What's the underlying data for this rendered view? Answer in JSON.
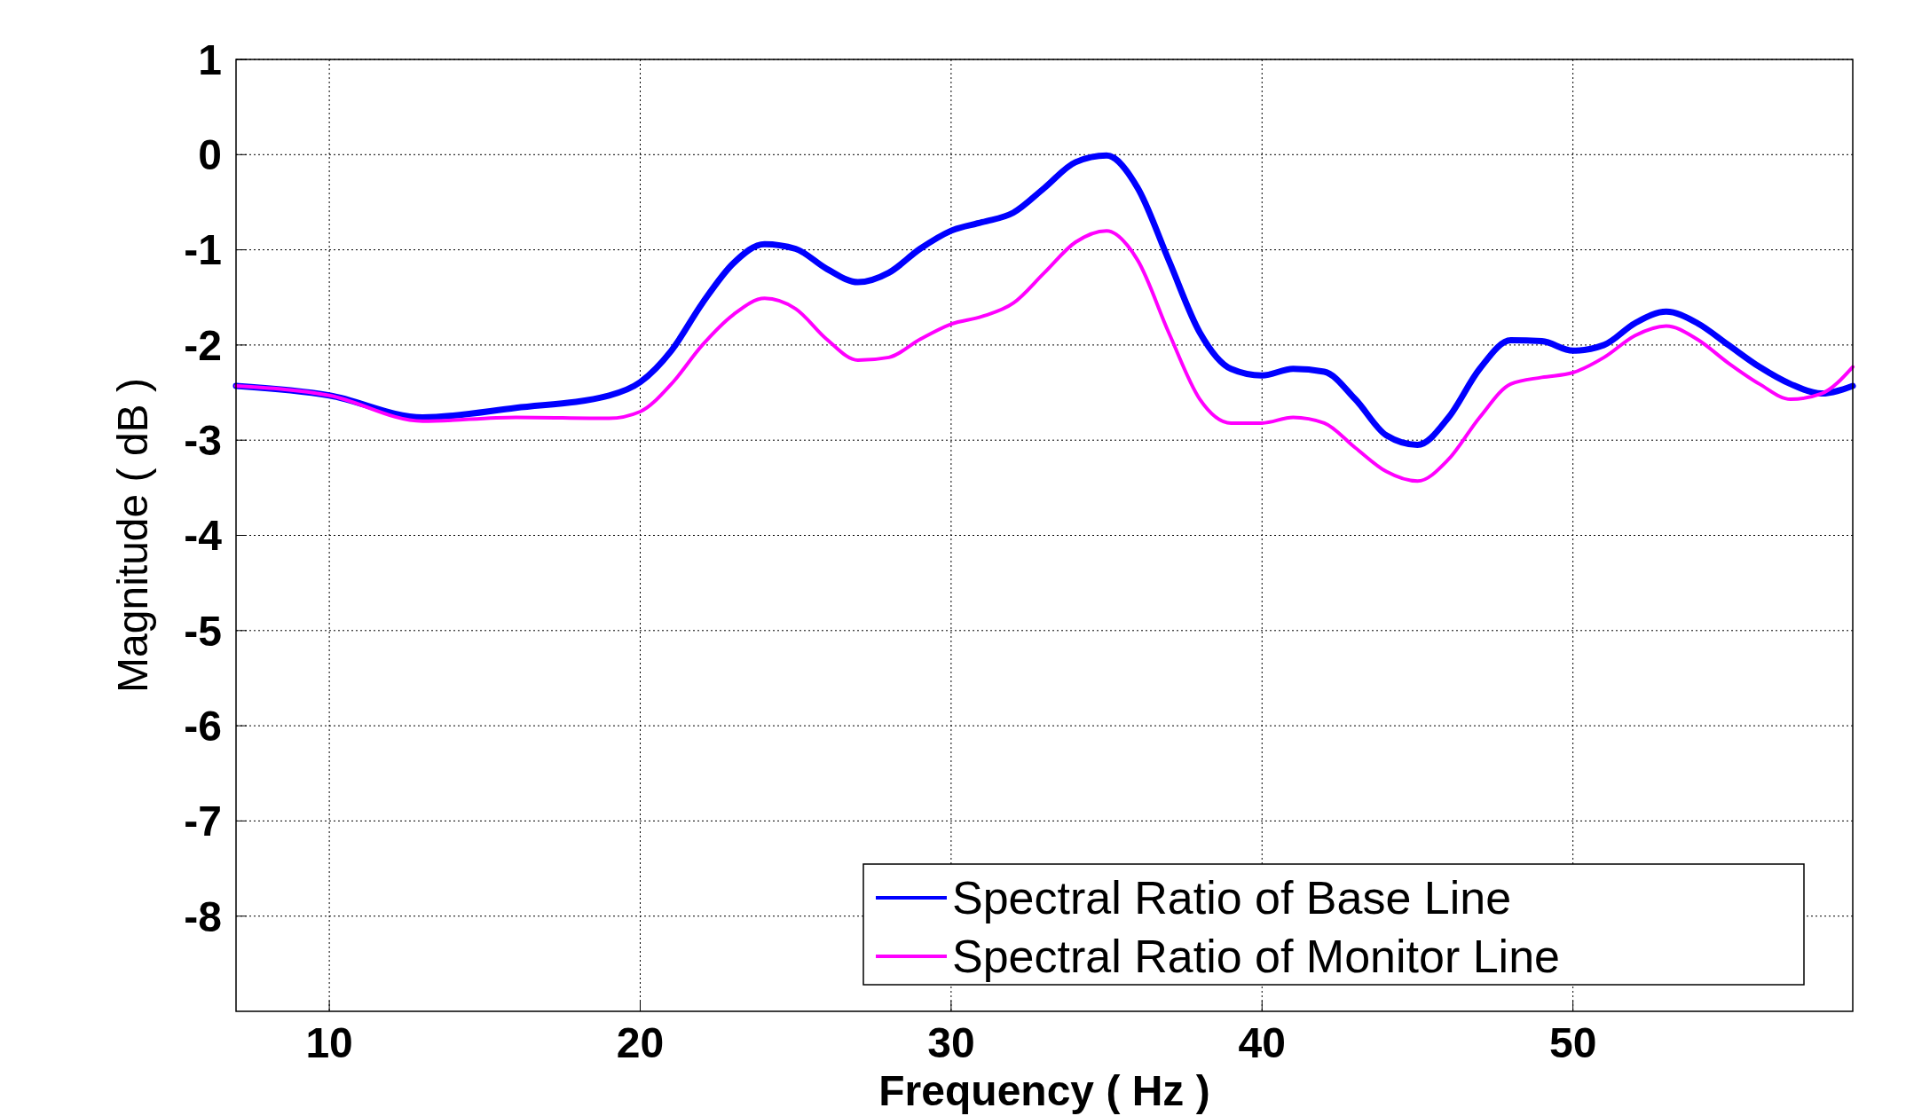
{
  "chart_data": {
    "type": "line",
    "xlabel": "Frequency ( Hz )",
    "ylabel": "Magnitude ( dB )",
    "x": [
      7,
      10,
      13,
      16,
      19,
      20,
      21,
      22,
      23,
      24,
      25,
      26,
      27,
      28,
      29,
      30,
      31,
      32,
      33,
      34,
      35,
      36,
      37,
      38,
      39,
      40,
      41,
      42,
      43,
      44,
      45,
      46,
      47,
      48,
      49,
      50,
      51,
      52,
      53,
      54,
      55,
      56,
      57,
      58,
      59
    ],
    "series": [
      {
        "name": "Spectral Ratio of Base Line",
        "color": "#0000ff",
        "values": [
          -2.43,
          -2.53,
          -2.76,
          -2.66,
          -2.53,
          -2.39,
          -2.06,
          -1.56,
          -1.14,
          -0.94,
          -0.99,
          -1.2,
          -1.34,
          -1.24,
          -0.99,
          -0.8,
          -0.71,
          -0.61,
          -0.35,
          -0.08,
          -0.01,
          -0.35,
          -1.11,
          -1.87,
          -2.25,
          -2.32,
          -2.25,
          -2.28,
          -2.57,
          -2.95,
          -3.05,
          -2.76,
          -2.25,
          -1.95,
          -1.96,
          -2.06,
          -2.0,
          -1.77,
          -1.65,
          -1.77,
          -2.0,
          -2.23,
          -2.41,
          -2.51,
          -2.43
        ]
      },
      {
        "name": "Spectral Ratio of Monitor Line",
        "color": "#ff00ff",
        "values": [
          -2.43,
          -2.53,
          -2.8,
          -2.76,
          -2.77,
          -2.7,
          -2.41,
          -2.0,
          -1.68,
          -1.51,
          -1.62,
          -1.94,
          -2.16,
          -2.13,
          -1.94,
          -1.78,
          -1.7,
          -1.56,
          -1.24,
          -0.92,
          -0.8,
          -1.11,
          -1.87,
          -2.57,
          -2.82,
          -2.82,
          -2.76,
          -2.82,
          -3.08,
          -3.33,
          -3.43,
          -3.2,
          -2.76,
          -2.41,
          -2.34,
          -2.29,
          -2.13,
          -1.9,
          -1.8,
          -1.94,
          -2.19,
          -2.41,
          -2.57,
          -2.51,
          -2.23
        ]
      }
    ],
    "xlim": [
      7,
      59
    ],
    "xticks": [
      10,
      20,
      30,
      40,
      50
    ],
    "ylim": [
      -9,
      1
    ],
    "yticks": [
      1,
      0,
      -1,
      -2,
      -3,
      -4,
      -5,
      -6,
      -7,
      -8
    ],
    "grid": true,
    "legend": "bottom right",
    "line_style": "solid"
  }
}
